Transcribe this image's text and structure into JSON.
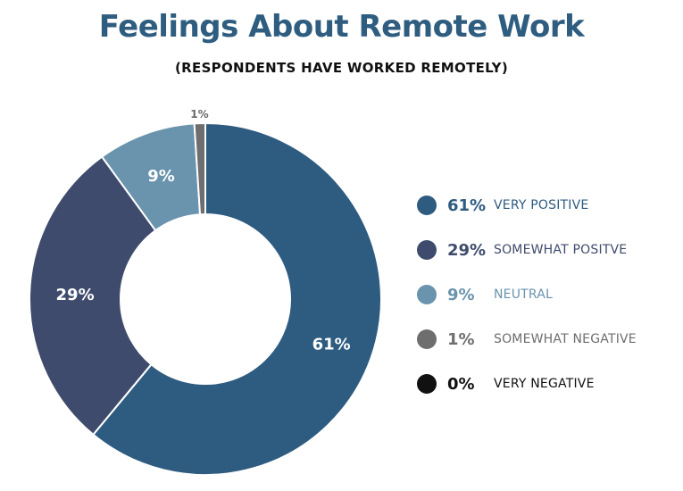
{
  "chart_data": {
    "type": "pie",
    "title": "Feelings About Remote Work",
    "subtitle": "(RESPONDENTS HAVE WORKED REMOTELY)",
    "donut": true,
    "categories": [
      "VERY POSITIVE",
      "SOMEWHAT POSITVE",
      "NEUTRAL",
      "SOMEWHAT NEGATIVE",
      "VERY NEGATIVE"
    ],
    "values": [
      61,
      29,
      9,
      1,
      0
    ],
    "value_labels": [
      "61%",
      "29%",
      "9%",
      "1%",
      "0%"
    ],
    "colors": [
      "#2e5b80",
      "#3f4b6c",
      "#6a93ad",
      "#6e6e6e",
      "#111111"
    ],
    "legend_text_colors": [
      "#2e5b80",
      "#3f4b6c",
      "#6a93ad",
      "#6e6e6e",
      "#111111"
    ],
    "legend_placement": "right",
    "grid": false
  }
}
